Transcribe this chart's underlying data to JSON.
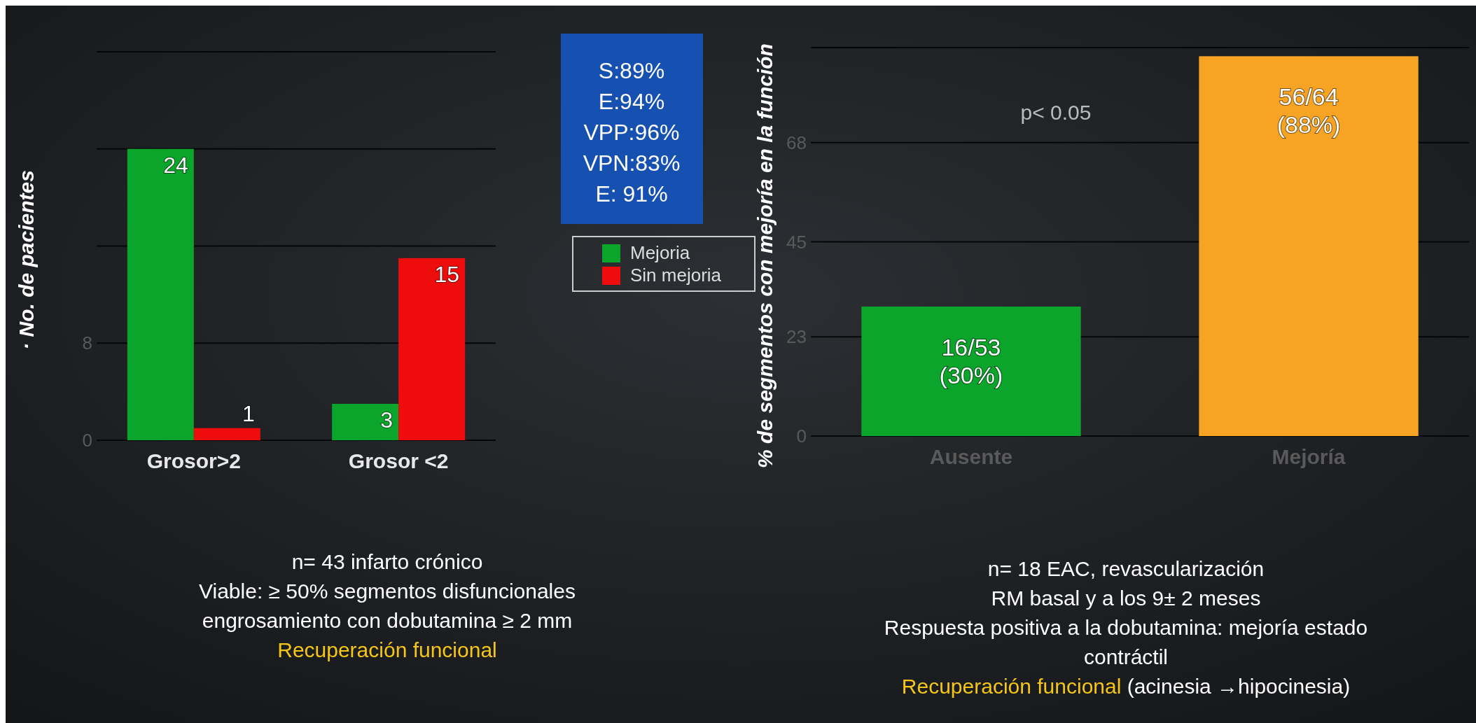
{
  "chart_data": [
    {
      "type": "bar",
      "ylabel": "· No. de pacientes",
      "categories": [
        "Grosor>2",
        "Grosor <2"
      ],
      "series": [
        {
          "name": "Mejoria",
          "color": "#0aa52a",
          "values": [
            24,
            3
          ]
        },
        {
          "name": "Sin mejoria",
          "color": "#ee0c0c",
          "values": [
            1,
            15
          ]
        }
      ],
      "ylim": [
        0,
        32
      ],
      "yticks": [
        0,
        8,
        {
          "value": 16,
          "label": null
        },
        {
          "value": 24,
          "label": null
        },
        {
          "value": 32,
          "label": null
        }
      ],
      "grid": "y",
      "data_labels": true,
      "legend": "right",
      "annotations": [
        "S:89%\nE:94%\nVPP:96%\nVPN:83%\nE: 91%",
        "n= 43 infarto crónico",
        "Viable: ≥ 50%  segmentos  disfuncionales",
        "engrosamiento con dobutamina ≥ 2 mm",
        "Recuperación funcional"
      ]
    },
    {
      "type": "bar",
      "ylabel": "% de segmentos con mejoría en la función",
      "categories": [
        "Ausente",
        "Mejoría"
      ],
      "values": [
        30,
        88
      ],
      "colors": [
        "#0aa52a",
        "#f7a323"
      ],
      "value_labels": [
        "16/53\n(30%)",
        "56/64\n(88%)"
      ],
      "ylim": [
        0,
        90
      ],
      "yticks": [
        0,
        23,
        45,
        68,
        {
          "value": 90,
          "label": null
        }
      ],
      "grid": "y",
      "annotations": [
        "p< 0.05",
        "n= 18 EAC, revascularización",
        "RM basal y a los 9± 2 meses",
        "Respuesta positiva a la dobutamina: mejoría estado",
        "contráctil",
        "Recuperación funcional",
        "(acinesia →hipocinesia)"
      ]
    }
  ]
}
